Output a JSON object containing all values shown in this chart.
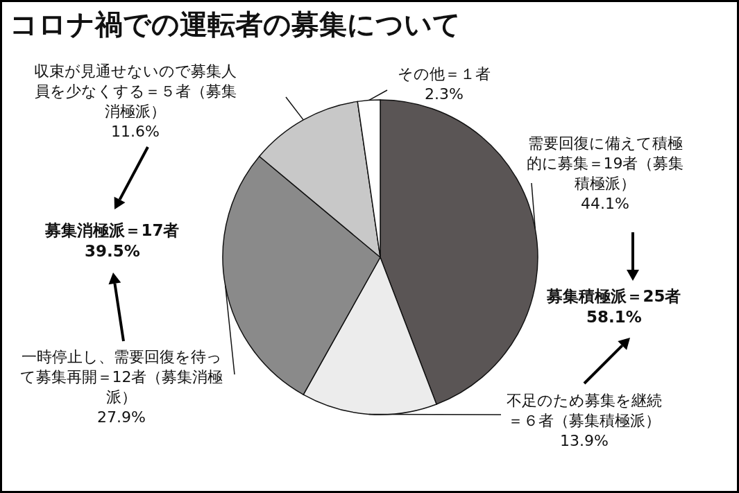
{
  "chart_data": {
    "type": "pie",
    "title": "コロナ禍での運転者の募集について",
    "categories": [
      "需要回復に備えて積極的に募集＝19者（募集積極派）",
      "不足のため募集を継続＝６者（募集積極派）",
      "一時停止し、需要回復を待って募集再開＝12者（募集消極派）",
      "収束が見通せないので募集人員を少なくする＝５者（募集消極派）",
      "その他＝１者"
    ],
    "values": [
      44.1,
      13.9,
      27.9,
      11.6,
      2.3
    ],
    "value_labels": [
      "44.1%",
      "13.9%",
      "27.9%",
      "11.6%",
      "2.3%"
    ],
    "colors": [
      "#5a5555",
      "#ececec",
      "#8a8a8a",
      "#c8c8c8",
      "#ffffff"
    ],
    "annotations": [
      "募集積極派＝25者 58.1%",
      "募集消極派＝17者 39.5%"
    ]
  }
}
